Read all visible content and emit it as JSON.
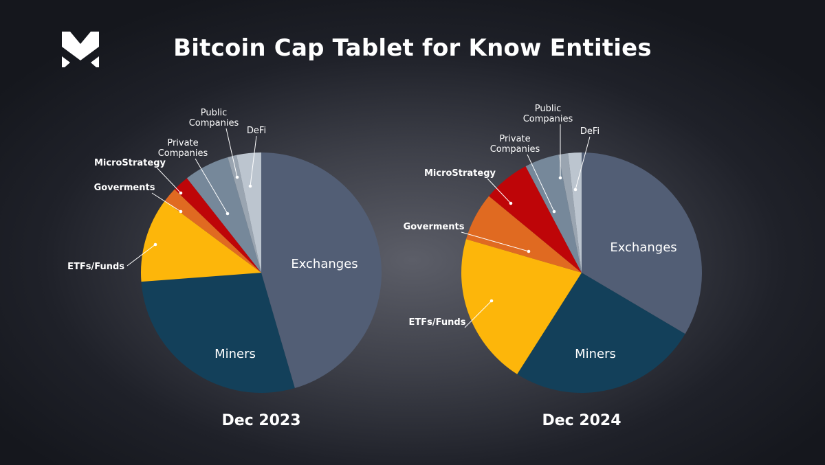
{
  "title": "Bitcoin Cap Tablet for Know Entities",
  "brand": {
    "logo": "mexc-m-logo"
  },
  "colors": {
    "Exchanges": "#525e75",
    "Miners": "#13405a",
    "ETFs/Funds": "#fdb60a",
    "Goverments": "#e06a21",
    "MicroStrategy": "#be0508",
    "Private Companies": "#76889a",
    "Public Companies": "#9aa5b1",
    "DeFi": "#bcc5cf"
  },
  "chart_data": [
    {
      "type": "pie",
      "title": "Dec 2023",
      "start": "top, clockwise",
      "categories": [
        "Exchanges",
        "Miners",
        "ETFs/Funds",
        "Goverments",
        "MicroStrategy",
        "Private Companies",
        "Public Companies",
        "DeFi"
      ],
      "values": [
        45.5,
        28.3,
        11.4,
        2.0,
        2.2,
        6.1,
        1.2,
        3.3
      ],
      "unit": "% of known entity holdings (estimated)",
      "inside_labels": [
        "Exchanges",
        "Miners"
      ],
      "callout_labels": [
        {
          "text": [
            "ETFs/Funds"
          ],
          "bold": true
        },
        {
          "text": [
            "Goverments"
          ],
          "bold": true
        },
        {
          "text": [
            "MicroStrategy"
          ],
          "bold": true
        },
        {
          "text": [
            "Private",
            "Companies"
          ],
          "bold": false
        },
        {
          "text": [
            "Public",
            "Companies"
          ],
          "bold": false
        },
        {
          "text": [
            "DeFi"
          ],
          "bold": false
        }
      ]
    },
    {
      "type": "pie",
      "title": "Dec 2024",
      "start": "top, clockwise",
      "categories": [
        "Exchanges",
        "Miners",
        "ETFs/Funds",
        "Goverments",
        "MicroStrategy",
        "Private Companies",
        "Public Companies",
        "DeFi"
      ],
      "values": [
        33.5,
        25.5,
        20.5,
        6.5,
        6.3,
        4.6,
        1.3,
        1.8
      ],
      "unit": "% of known entity holdings (estimated)",
      "inside_labels": [
        "Exchanges",
        "Miners"
      ],
      "callout_labels": [
        {
          "text": [
            "ETFs/Funds"
          ],
          "bold": true
        },
        {
          "text": [
            "Goverments"
          ],
          "bold": true
        },
        {
          "text": [
            "MicroStrategy"
          ],
          "bold": true
        },
        {
          "text": [
            "Private",
            "Companies"
          ],
          "bold": false
        },
        {
          "text": [
            "Public",
            "Companies"
          ],
          "bold": false
        },
        {
          "text": [
            "DeFi"
          ],
          "bold": false
        }
      ]
    }
  ]
}
